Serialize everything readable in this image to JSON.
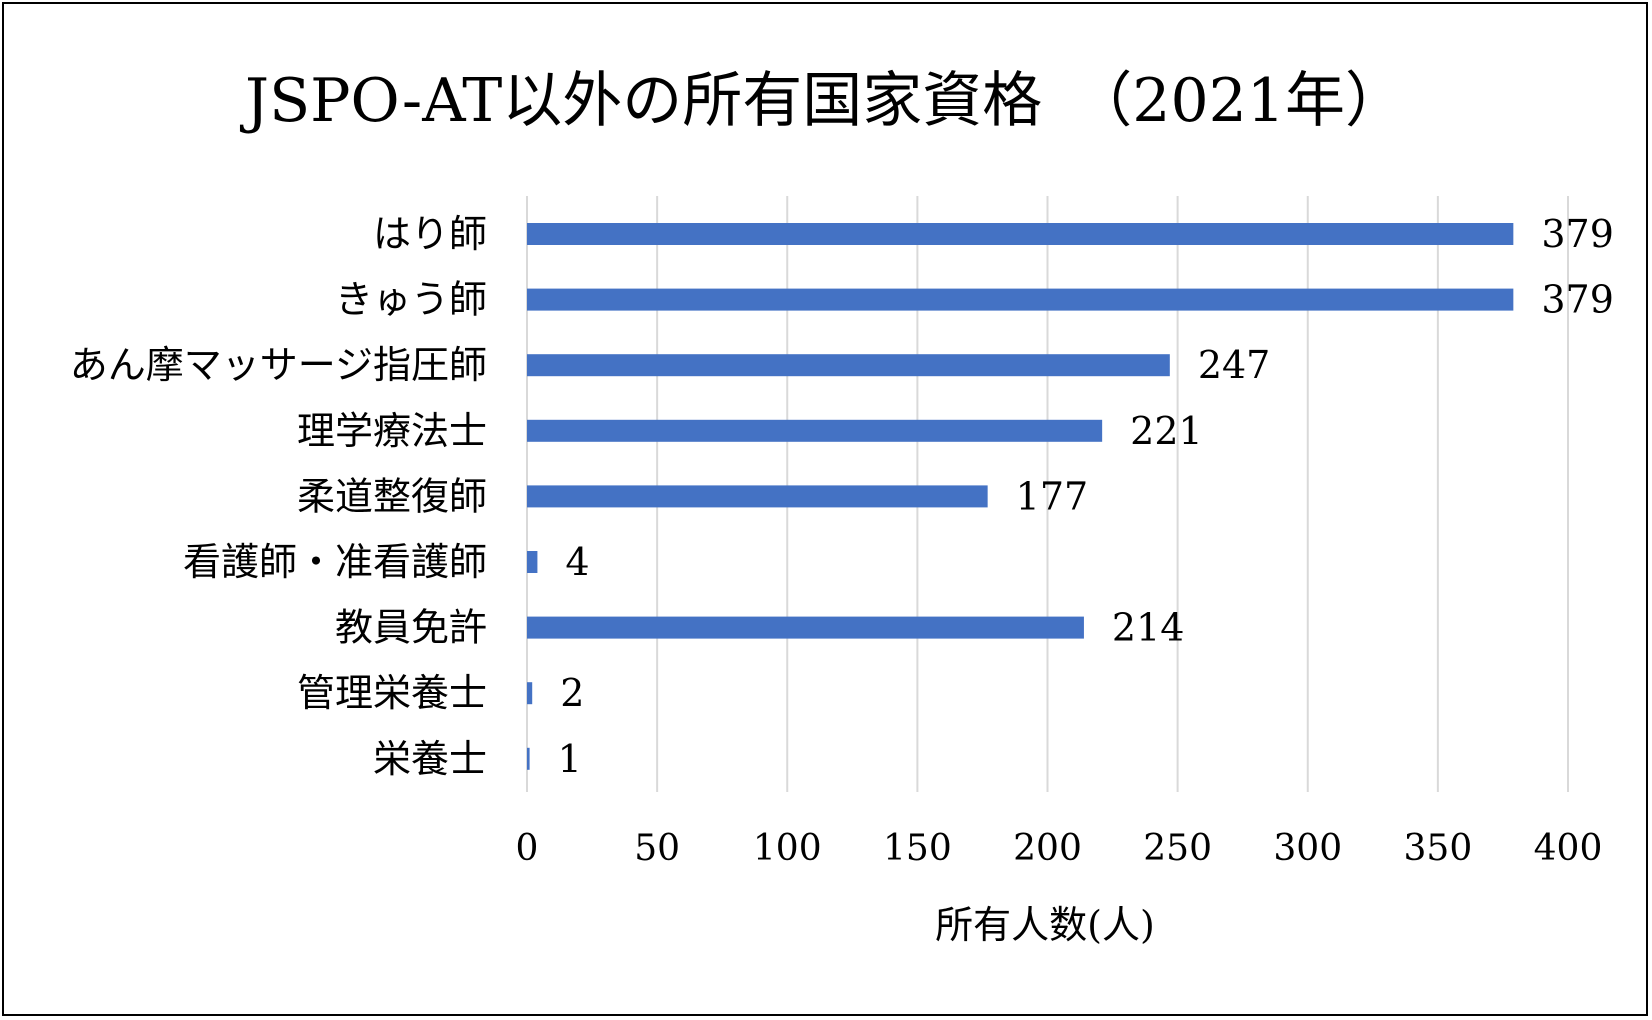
{
  "chart_data": {
    "type": "bar",
    "orientation": "horizontal",
    "title": "JSPO-AT以外の所有国家資格　（2021年）",
    "xlabel": "所有人数(人)",
    "ylabel": "",
    "categories": [
      "はり師",
      "きゅう師",
      "あん摩マッサージ指圧師",
      "理学療法士",
      "柔道整復師",
      "看護師・准看護師",
      "教員免許",
      "管理栄養士",
      "栄養士"
    ],
    "values": [
      379,
      379,
      247,
      221,
      177,
      4,
      214,
      2,
      1
    ],
    "xlim": [
      0,
      400
    ],
    "x_ticks": [
      0,
      50,
      100,
      150,
      200,
      250,
      300,
      350,
      400
    ],
    "x_tick_labels": [
      "0",
      "50",
      "100",
      "150",
      "200",
      "250",
      "300",
      "350",
      "400"
    ],
    "data_labels": [
      "379",
      "379",
      "247",
      "221",
      "177",
      "4",
      "214",
      "2",
      "1"
    ],
    "grid": "vertical",
    "legend": "none",
    "bar_color": "#4472c4",
    "grid_color": "#d9d9d9"
  }
}
